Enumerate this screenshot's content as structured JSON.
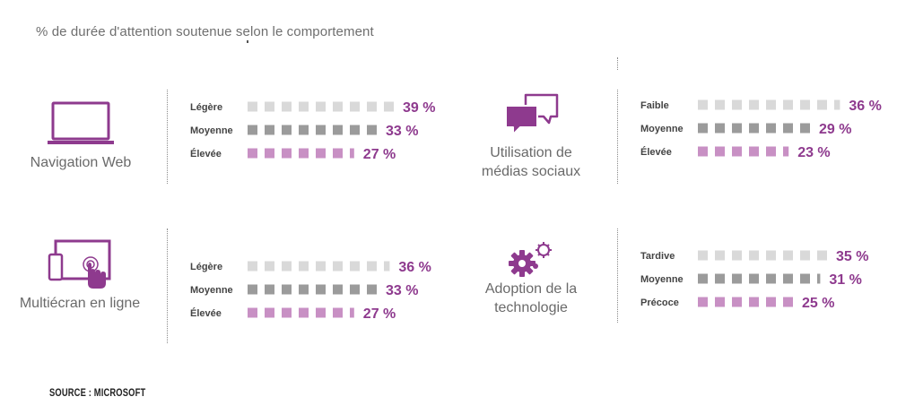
{
  "title": "% de durée d'attention soutenue selon le comportement",
  "source": "SOURCE : MICROSOFT",
  "colors": {
    "accent": "#8e3a8e",
    "level_1": "#d9d9d9",
    "level_2": "#9b9b9b",
    "level_3": "#c890c4",
    "label": "#444444",
    "muted": "#6a6a6a"
  },
  "chart_data": [
    {
      "type": "bar",
      "label": "Navigation Web",
      "icon": "laptop-icon",
      "categories": [
        "Légère",
        "Moyenne",
        "Élevée"
      ],
      "values": [
        39,
        33,
        27
      ],
      "value_labels": [
        "39 %",
        "33 %",
        "27 %"
      ],
      "unit": "%"
    },
    {
      "type": "bar",
      "label": "Utilisation de médias sociaux",
      "label_lines": [
        "Utilisation de",
        "médias sociaux"
      ],
      "icon": "chat-bubbles-icon",
      "categories": [
        "Faible",
        "Moyenne",
        "Élevée"
      ],
      "values": [
        36,
        29,
        23
      ],
      "value_labels": [
        "36 %",
        "29 %",
        "23 %"
      ],
      "unit": "%"
    },
    {
      "type": "bar",
      "label": "Multiécran en ligne",
      "icon": "multiscreen-touch-icon",
      "categories": [
        "Légère",
        "Moyenne",
        "Élevée"
      ],
      "values": [
        36,
        33,
        27
      ],
      "value_labels": [
        "36 %",
        "33 %",
        "27 %"
      ],
      "unit": "%"
    },
    {
      "type": "bar",
      "label": "Adoption de la technologie",
      "label_lines": [
        "Adoption de la",
        "technologie"
      ],
      "icon": "gears-icon",
      "categories": [
        "Tardive",
        "Moyenne",
        "Précoce"
      ],
      "values": [
        35,
        31,
        25
      ],
      "value_labels": [
        "35 %",
        "31 %",
        "25 %"
      ],
      "unit": "%"
    }
  ]
}
